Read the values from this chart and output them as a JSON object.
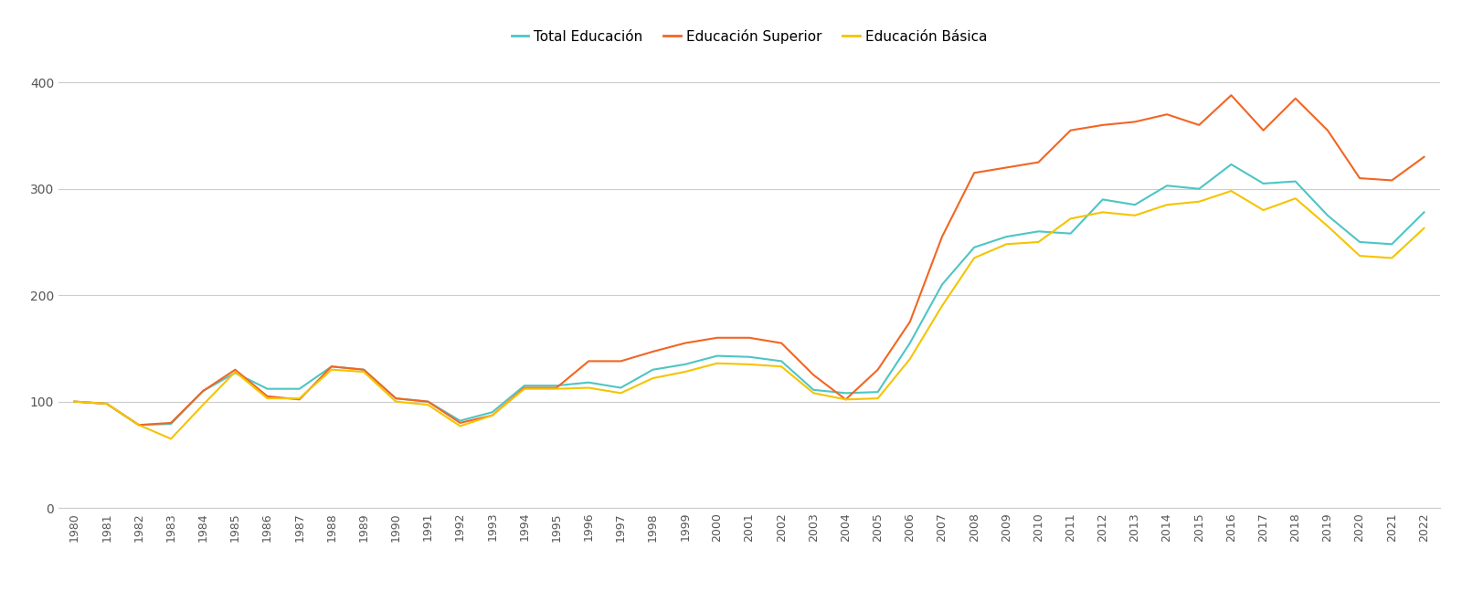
{
  "years": [
    1980,
    1981,
    1982,
    1983,
    1984,
    1985,
    1986,
    1987,
    1988,
    1989,
    1990,
    1991,
    1992,
    1993,
    1994,
    1995,
    1996,
    1997,
    1998,
    1999,
    2000,
    2001,
    2002,
    2003,
    2004,
    2005,
    2006,
    2007,
    2008,
    2009,
    2010,
    2011,
    2012,
    2013,
    2014,
    2015,
    2016,
    2017,
    2018,
    2019,
    2020,
    2021,
    2022
  ],
  "total_educacion": [
    100,
    98,
    78,
    79,
    110,
    127,
    112,
    112,
    133,
    130,
    103,
    100,
    82,
    90,
    115,
    115,
    118,
    113,
    130,
    135,
    143,
    142,
    138,
    111,
    108,
    109,
    155,
    210,
    245,
    255,
    260,
    258,
    290,
    285,
    303,
    300,
    323,
    305,
    307,
    275,
    250,
    248,
    278
  ],
  "educacion_superior": [
    100,
    98,
    78,
    80,
    110,
    130,
    105,
    102,
    133,
    130,
    103,
    100,
    80,
    87,
    113,
    113,
    138,
    138,
    147,
    155,
    160,
    160,
    155,
    125,
    102,
    130,
    175,
    255,
    315,
    320,
    325,
    355,
    360,
    363,
    370,
    360,
    388,
    355,
    385,
    355,
    310,
    308,
    330
  ],
  "educacion_basica": [
    100,
    98,
    78,
    65,
    97,
    128,
    103,
    103,
    130,
    128,
    100,
    97,
    77,
    87,
    112,
    112,
    113,
    108,
    122,
    128,
    136,
    135,
    133,
    108,
    102,
    103,
    140,
    190,
    235,
    248,
    250,
    272,
    278,
    275,
    285,
    288,
    298,
    280,
    291,
    265,
    237,
    235,
    263
  ],
  "colors": {
    "total_educacion": "#4DC5C5",
    "educacion_superior": "#F26522",
    "educacion_basica": "#F5C400"
  },
  "legend_labels": [
    "Total Educación",
    "Educación Superior",
    "Educación Básica"
  ],
  "ylim": [
    0,
    420
  ],
  "yticks": [
    0,
    100,
    200,
    300,
    400
  ],
  "background_color": "#ffffff",
  "grid_color": "#cccccc",
  "line_width": 1.5,
  "legend_marker_size": 8,
  "tick_fontsize": 9,
  "ytick_fontsize": 10,
  "legend_fontsize": 11
}
